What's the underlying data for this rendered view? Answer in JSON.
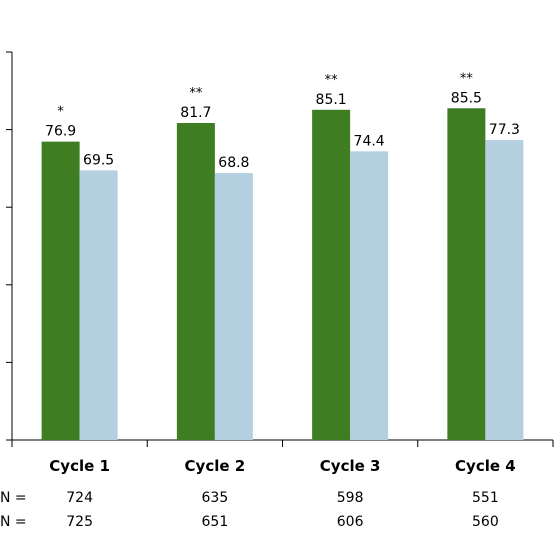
{
  "chart_data": {
    "type": "bar",
    "categories": [
      "Cycle 1",
      "Cycle 2",
      "Cycle 3",
      "Cycle 4"
    ],
    "series": [
      {
        "values": [
          76.9,
          81.7,
          85.1,
          85.5
        ],
        "color": "#3f7d22"
      },
      {
        "values": [
          69.5,
          68.8,
          74.4,
          77.3
        ],
        "color": "#b4cfe0"
      }
    ],
    "significance": [
      "*",
      "**",
      "**",
      "**"
    ],
    "ylim": [
      0,
      100
    ],
    "grid": false,
    "n_rows": [
      {
        "label": "N =",
        "values": [
          "724",
          "635",
          "598",
          "551"
        ]
      },
      {
        "label": "N =",
        "values": [
          "725",
          "651",
          "606",
          "560"
        ]
      }
    ]
  }
}
